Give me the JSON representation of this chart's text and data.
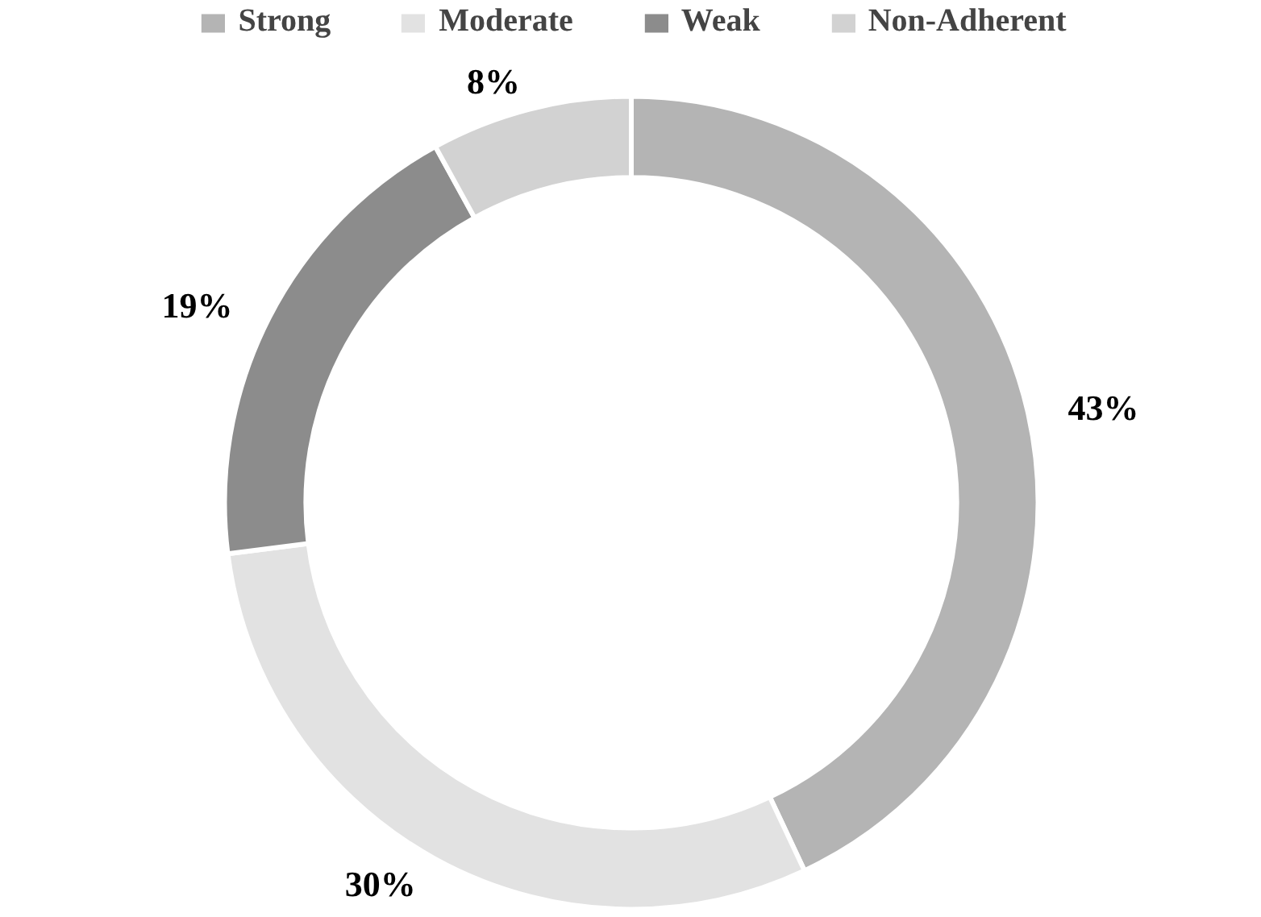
{
  "chart_data": {
    "type": "donut",
    "categories": [
      "Strong",
      "Moderate",
      "Weak",
      "Non-Adherent"
    ],
    "values": [
      43,
      30,
      19,
      8
    ],
    "colors": [
      "#b4b4b4",
      "#e2e2e2",
      "#8c8c8c",
      "#d2d2d2"
    ],
    "value_labels": [
      "43%",
      "30%",
      "19%",
      "8%"
    ],
    "legend": "top"
  }
}
